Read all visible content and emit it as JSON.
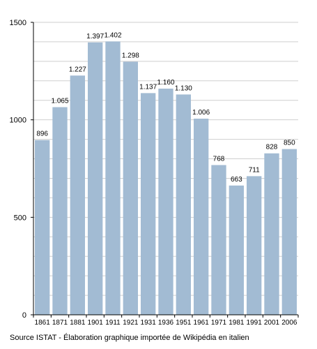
{
  "chart_data": {
    "type": "bar",
    "categories": [
      "1861",
      "1871",
      "1881",
      "1901",
      "1911",
      "1921",
      "1931",
      "1936",
      "1951",
      "1961",
      "1971",
      "1981",
      "1991",
      "2001",
      "2006"
    ],
    "values": [
      896,
      1065,
      1227,
      1397,
      1402,
      1298,
      1137,
      1160,
      1130,
      1006,
      768,
      663,
      711,
      828,
      850
    ],
    "data_labels": [
      "896",
      "1.065",
      "1.227",
      "1.397",
      "1.402",
      "1.298",
      "1.137",
      "1.160",
      "1.130",
      "1.006",
      "768",
      "663",
      "711",
      "828",
      "850"
    ],
    "yticks": [
      "0",
      "500",
      "1000",
      "1500"
    ],
    "ylim": [
      0,
      1500
    ],
    "grid": true,
    "bar_color": "#a2bbd3",
    "title": "",
    "xlabel": "",
    "ylabel": ""
  },
  "source_text": "Source ISTAT - Élaboration graphique importée de Wikipédia en italien"
}
